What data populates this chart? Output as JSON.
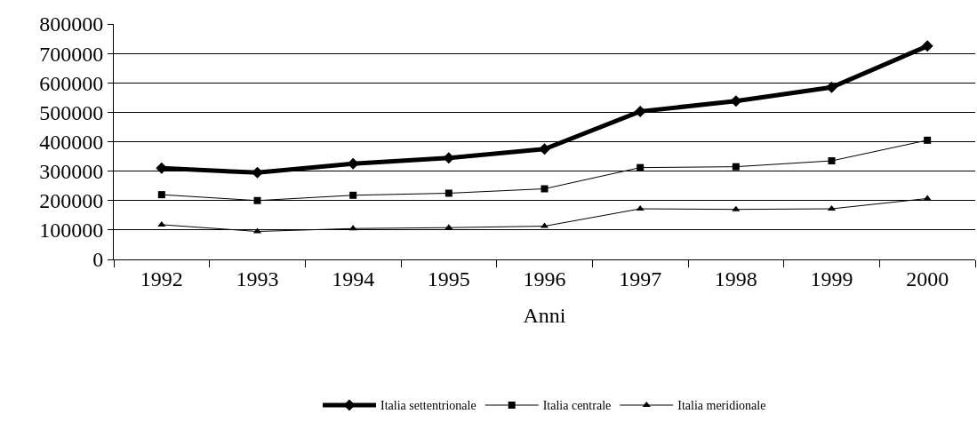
{
  "chart_data": {
    "type": "line",
    "xlabel": "Anni",
    "categories": [
      "1992",
      "1993",
      "1994",
      "1995",
      "1996",
      "1997",
      "1998",
      "1999",
      "2000"
    ],
    "series": [
      {
        "name": "Italia settentrionale",
        "color": "#000000",
        "marker": "diamond",
        "values": [
          310000,
          295000,
          325000,
          345000,
          375000,
          503000,
          538000,
          585000,
          725000
        ]
      },
      {
        "name": "Italia centrale",
        "color": "#000000",
        "marker": "square",
        "values": [
          220000,
          200000,
          218000,
          225000,
          240000,
          312000,
          315000,
          335000,
          405000
        ]
      },
      {
        "name": "Italia meridionale",
        "color": "#000000",
        "marker": "triangle",
        "values": [
          118000,
          95000,
          105000,
          108000,
          113000,
          172000,
          170000,
          172000,
          207000
        ]
      }
    ],
    "ylim": [
      0,
      800000
    ],
    "yticks": [
      0,
      100000,
      200000,
      300000,
      400000,
      500000,
      600000,
      700000,
      800000
    ],
    "grid": "y",
    "legend": "bottom",
    "line_style": "solid"
  }
}
